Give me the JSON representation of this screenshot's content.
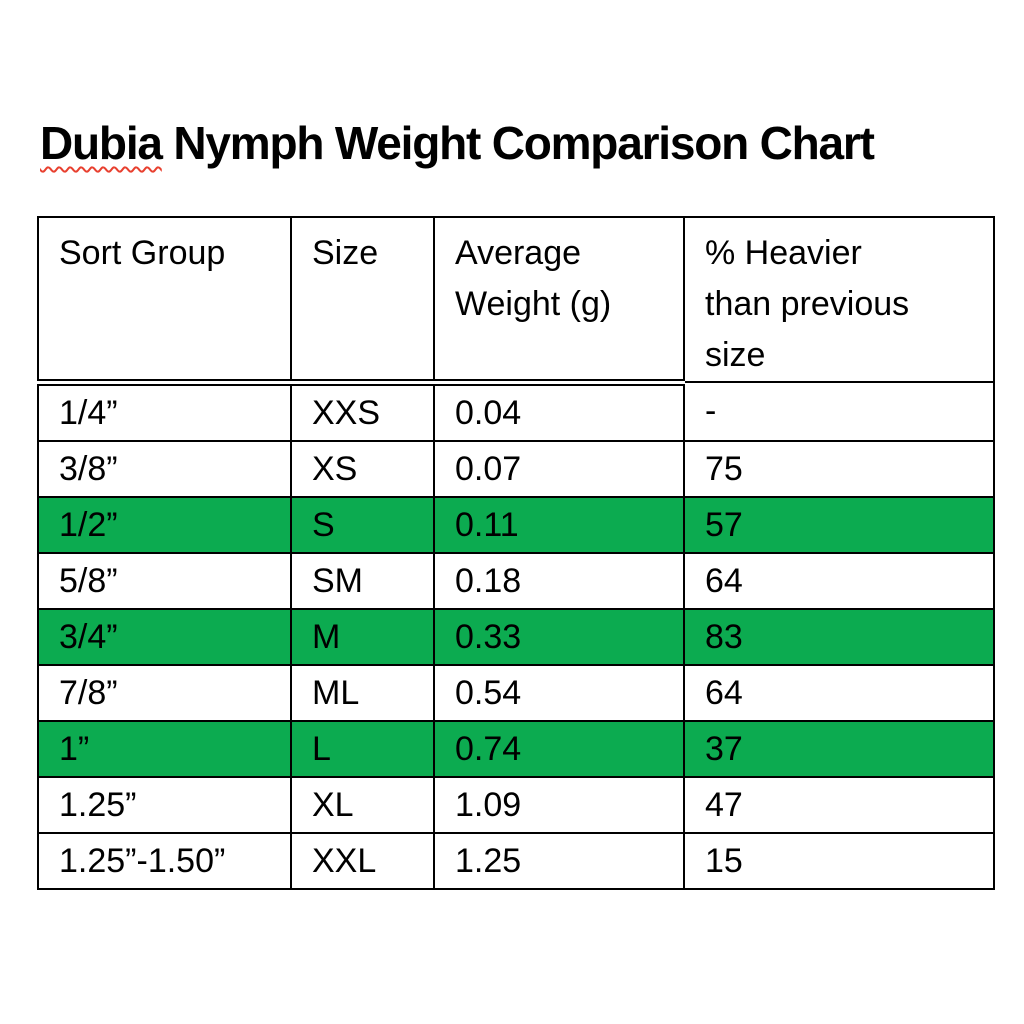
{
  "page": {
    "background_color": "#ffffff"
  },
  "title": {
    "text": "Dubia Nymph Weight Comparison Chart",
    "misspelled_word": "Dubia",
    "rest": " Nymph Weight Comparison Chart"
  },
  "colors": {
    "highlight_green": "#0cab50",
    "spellcheck_squiggle_red": "#e8402f",
    "border_black": "#000000",
    "text_black": "#000000"
  },
  "table": {
    "headers": {
      "sort_group": "Sort Group",
      "size": "Size",
      "avg_weight": "Average\nWeight (g)",
      "pct_heavier": "% Heavier\nthan previous\nsize"
    },
    "rows": [
      {
        "sort_group": "1/4”",
        "size": "XXS",
        "avg_weight_g": "0.04",
        "pct_heavier": "-",
        "highlighted": false
      },
      {
        "sort_group": "3/8”",
        "size": "XS",
        "avg_weight_g": "0.07",
        "pct_heavier": "75",
        "highlighted": false
      },
      {
        "sort_group": "1/2”",
        "size": "S",
        "avg_weight_g": "0.11",
        "pct_heavier": "57",
        "highlighted": true
      },
      {
        "sort_group": "5/8”",
        "size": "SM",
        "avg_weight_g": "0.18",
        "pct_heavier": "64",
        "highlighted": false
      },
      {
        "sort_group": "3/4”",
        "size": "M",
        "avg_weight_g": "0.33",
        "pct_heavier": "83",
        "highlighted": true
      },
      {
        "sort_group": "7/8”",
        "size": "ML",
        "avg_weight_g": "0.54",
        "pct_heavier": "64",
        "highlighted": false
      },
      {
        "sort_group": "1”",
        "size": "L",
        "avg_weight_g": "0.74",
        "pct_heavier": "37",
        "highlighted": true
      },
      {
        "sort_group": "1.25”",
        "size": "XL",
        "avg_weight_g": "1.09",
        "pct_heavier": "47",
        "highlighted": false
      },
      {
        "sort_group": "1.25”-1.50”",
        "size": "XXL",
        "avg_weight_g": "1.25",
        "pct_heavier": "15",
        "highlighted": false
      }
    ]
  }
}
